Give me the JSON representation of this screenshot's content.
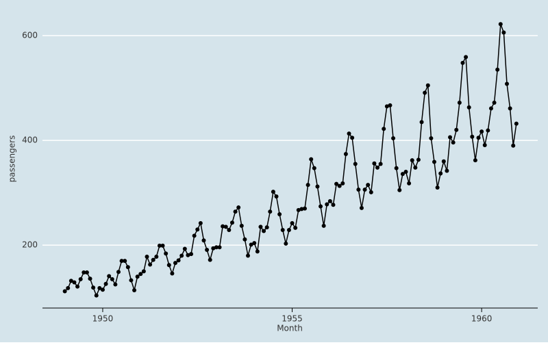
{
  "chart_data": {
    "type": "line",
    "x_label": "Month",
    "y_label": "passengers",
    "x": [
      1949,
      1949.0833,
      1949.1667,
      1949.25,
      1949.3333,
      1949.4167,
      1949.5,
      1949.5833,
      1949.6667,
      1949.75,
      1949.8333,
      1949.9167,
      1950,
      1950.0833,
      1950.1667,
      1950.25,
      1950.3333,
      1950.4167,
      1950.5,
      1950.5833,
      1950.6667,
      1950.75,
      1950.8333,
      1950.9167,
      1951,
      1951.0833,
      1951.1667,
      1951.25,
      1951.3333,
      1951.4167,
      1951.5,
      1951.5833,
      1951.6667,
      1951.75,
      1951.8333,
      1951.9167,
      1952,
      1952.0833,
      1952.1667,
      1952.25,
      1952.3333,
      1952.4167,
      1952.5,
      1952.5833,
      1952.6667,
      1952.75,
      1952.8333,
      1952.9167,
      1953,
      1953.0833,
      1953.1667,
      1953.25,
      1953.3333,
      1953.4167,
      1953.5,
      1953.5833,
      1953.6667,
      1953.75,
      1953.8333,
      1953.9167,
      1954,
      1954.0833,
      1954.1667,
      1954.25,
      1954.3333,
      1954.4167,
      1954.5,
      1954.5833,
      1954.6667,
      1954.75,
      1954.8333,
      1954.9167,
      1955,
      1955.0833,
      1955.1667,
      1955.25,
      1955.3333,
      1955.4167,
      1955.5,
      1955.5833,
      1955.6667,
      1955.75,
      1955.8333,
      1955.9167,
      1956,
      1956.0833,
      1956.1667,
      1956.25,
      1956.3333,
      1956.4167,
      1956.5,
      1956.5833,
      1956.6667,
      1956.75,
      1956.8333,
      1956.9167,
      1957,
      1957.0833,
      1957.1667,
      1957.25,
      1957.3333,
      1957.4167,
      1957.5,
      1957.5833,
      1957.6667,
      1957.75,
      1957.8333,
      1957.9167,
      1958,
      1958.0833,
      1958.1667,
      1958.25,
      1958.3333,
      1958.4167,
      1958.5,
      1958.5833,
      1958.6667,
      1958.75,
      1958.8333,
      1958.9167,
      1959,
      1959.0833,
      1959.1667,
      1959.25,
      1959.3333,
      1959.4167,
      1959.5,
      1959.5833,
      1959.6667,
      1959.75,
      1959.8333,
      1959.9167,
      1960,
      1960.0833,
      1960.1667,
      1960.25,
      1960.3333,
      1960.4167,
      1960.5,
      1960.5833,
      1960.6667,
      1960.75,
      1960.8333,
      1960.9167
    ],
    "series": [
      {
        "color": "#000000",
        "values": [
          112,
          118,
          132,
          129,
          121,
          135,
          148,
          148,
          136,
          119,
          104,
          118,
          115,
          126,
          141,
          135,
          125,
          149,
          170,
          170,
          158,
          133,
          114,
          140,
          145,
          150,
          178,
          163,
          172,
          178,
          199,
          199,
          184,
          162,
          146,
          166,
          171,
          180,
          193,
          181,
          183,
          218,
          230,
          242,
          209,
          191,
          172,
          194,
          196,
          196,
          236,
          235,
          229,
          243,
          264,
          272,
          237,
          211,
          180,
          201,
          204,
          188,
          235,
          227,
          234,
          264,
          302,
          293,
          259,
          229,
          203,
          229,
          242,
          233,
          267,
          269,
          270,
          315,
          364,
          347,
          312,
          274,
          237,
          278,
          284,
          277,
          317,
          313,
          318,
          374,
          413,
          405,
          355,
          306,
          271,
          306,
          315,
          301,
          356,
          348,
          355,
          422,
          465,
          467,
          404,
          347,
          305,
          336,
          340,
          318,
          362,
          348,
          363,
          435,
          491,
          505,
          404,
          359,
          310,
          337,
          360,
          342,
          406,
          396,
          420,
          472,
          548,
          559,
          463,
          407,
          362,
          405,
          417,
          391,
          419,
          461,
          472,
          535,
          622,
          606,
          508,
          461,
          390,
          432
        ]
      }
    ],
    "xlim": [
      1948.41,
      1961.48
    ],
    "xticks": [
      1950,
      1955,
      1960
    ],
    "ylim": [
      80,
      668
    ],
    "yticks": [
      200,
      400,
      600
    ],
    "grid": true,
    "background": "#d5e4eb"
  }
}
